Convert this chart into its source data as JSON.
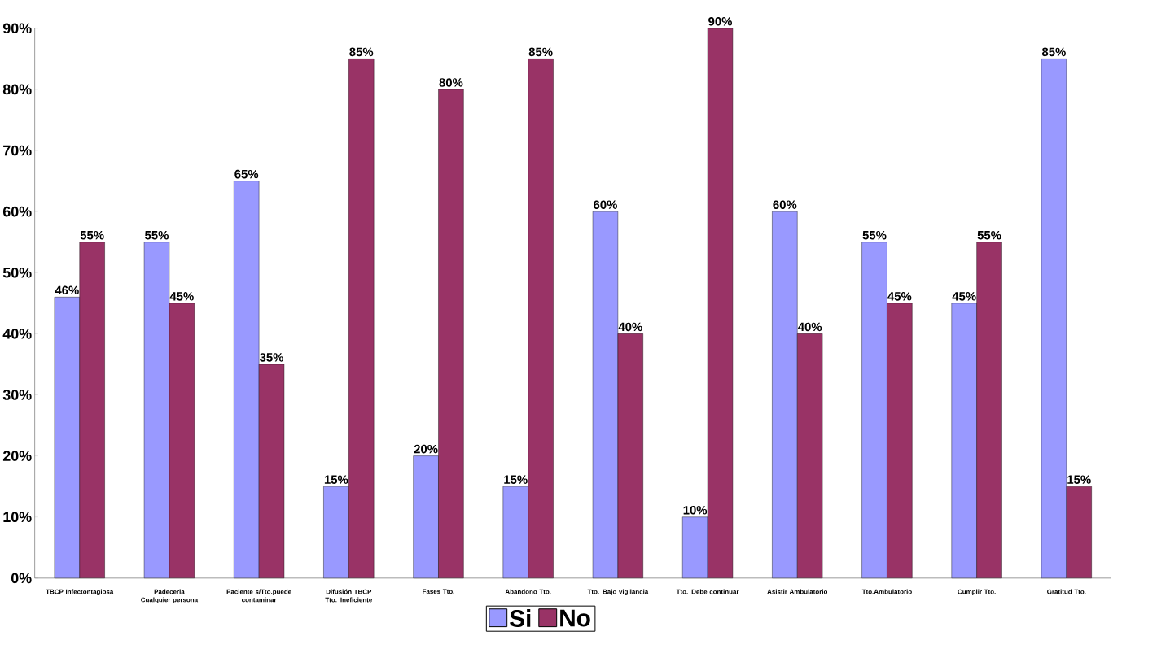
{
  "chart_data": {
    "type": "bar",
    "categories": [
      "TBCP Infectontagiosa",
      "Padecerla Cualquier persona",
      "Paciente s/Tto.puede contaminar",
      "Difusión TBCP Tto. Ineficiente",
      "Fases Tto.",
      "Abandono Tto.",
      "Tto. Bajo vigilancia",
      "Tto. Debe continuar",
      "Asistir Ambulatorio",
      "Tto.Ambulatorio",
      "Cumplir Tto.",
      "Gratitud Tto."
    ],
    "series": [
      {
        "name": "Si",
        "color": "#9999ff",
        "values": [
          46,
          55,
          65,
          15,
          20,
          15,
          60,
          10,
          60,
          55,
          45,
          85
        ],
        "value_labels": [
          "46%",
          "55%",
          "65%",
          "15%",
          "20%",
          "15%",
          "60%",
          "10%",
          "60%",
          "55%",
          "45%",
          "85%"
        ]
      },
      {
        "name": "No",
        "color": "#993366",
        "values": [
          55,
          45,
          35,
          85,
          80,
          85,
          40,
          90,
          40,
          45,
          55,
          15
        ],
        "value_labels": [
          "55%",
          "45%",
          "35%",
          "85%",
          "80%",
          "85%",
          "40%",
          "90%",
          "40%",
          "45%",
          "55%",
          "15%"
        ]
      }
    ],
    "ylim": [
      0,
      90
    ],
    "yticks": [
      {
        "value": 0,
        "label": "0%"
      },
      {
        "value": 10,
        "label": "10%"
      },
      {
        "value": 20,
        "label": "20%"
      },
      {
        "value": 30,
        "label": "30%"
      },
      {
        "value": 40,
        "label": "40%"
      },
      {
        "value": 50,
        "label": "50%"
      },
      {
        "value": 60,
        "label": "60%"
      },
      {
        "value": 70,
        "label": "70%"
      },
      {
        "value": 80,
        "label": "80%"
      },
      {
        "value": 90,
        "label": "90%"
      }
    ],
    "grid": false,
    "legend": "bottom"
  }
}
